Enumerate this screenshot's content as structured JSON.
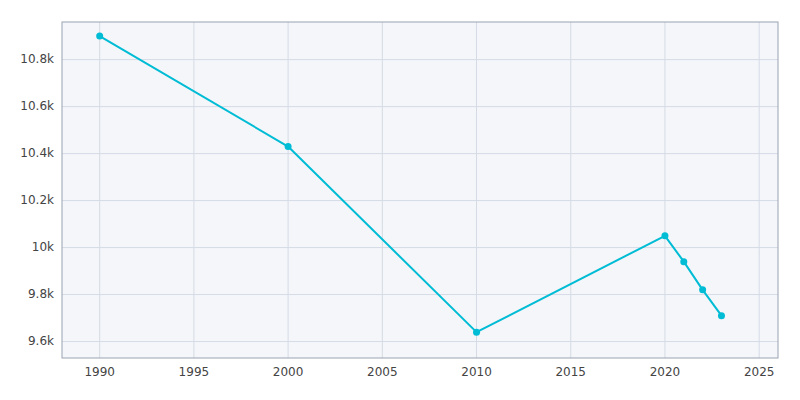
{
  "chart_data": {
    "type": "line",
    "x": [
      1990,
      2000,
      2010,
      2020,
      2021,
      2022,
      2023
    ],
    "values": [
      10900,
      10430,
      9640,
      10050,
      9940,
      9820,
      9710
    ],
    "color": "#00bcd4",
    "marker": "circle",
    "xlim": [
      1988,
      2026
    ],
    "ylim": [
      9530,
      10960
    ],
    "xticks": [
      1990,
      1995,
      2000,
      2005,
      2010,
      2015,
      2020,
      2025
    ],
    "yticks": [
      {
        "value": 9600,
        "label": "9.6k"
      },
      {
        "value": 9800,
        "label": "9.8k"
      },
      {
        "value": 10000,
        "label": "10k"
      },
      {
        "value": 10200,
        "label": "10.2k"
      },
      {
        "value": 10400,
        "label": "10.4k"
      },
      {
        "value": 10600,
        "label": "10.6k"
      },
      {
        "value": 10800,
        "label": "10.8k"
      }
    ],
    "grid": true
  }
}
